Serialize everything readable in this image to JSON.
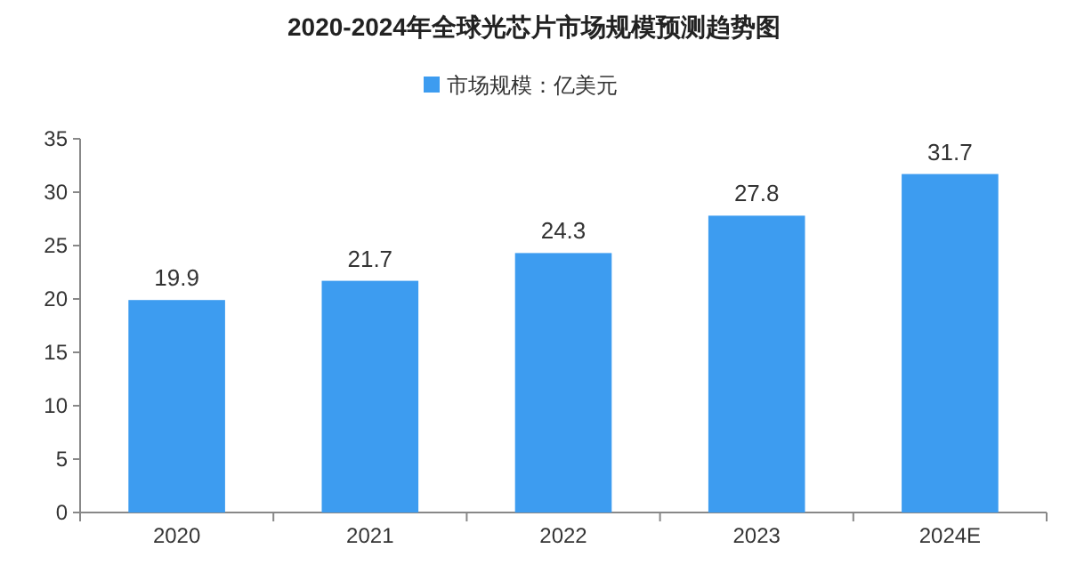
{
  "chart_data": {
    "type": "bar",
    "title": "2020-2024年全球光芯片市场规模预测趋势图",
    "categories": [
      "2020",
      "2021",
      "2022",
      "2023",
      "2024E"
    ],
    "series": [
      {
        "name": "市场规模：亿美元",
        "color": "#3d9cf0",
        "values": [
          19.9,
          21.7,
          24.3,
          27.8,
          31.7
        ]
      }
    ],
    "ylim": [
      0,
      35
    ],
    "yticks": [
      0,
      5,
      10,
      15,
      20,
      25,
      30,
      35
    ],
    "data_labels": true,
    "legend": "top"
  }
}
